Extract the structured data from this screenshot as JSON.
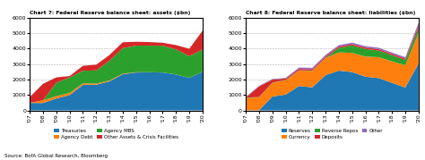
{
  "source": "Source: BofA Global Research, Bloomberg",
  "chart_data": [
    {
      "type": "area",
      "stacked": true,
      "title": "Chart 7: Federal Reserve balance sheet: assets ($bn)",
      "categories": [
        "'07",
        "'08",
        "'09",
        "'10",
        "'11",
        "'12",
        "'13",
        "'14",
        "'15",
        "'16",
        "'17",
        "'18",
        "'19",
        "'20"
      ],
      "series": [
        {
          "name": "Treasuries",
          "values": [
            480,
            480,
            770,
            990,
            1650,
            1660,
            1880,
            2340,
            2450,
            2460,
            2450,
            2320,
            2100,
            2500
          ]
        },
        {
          "name": "Agency Debt",
          "values": [
            10,
            170,
            155,
            140,
            95,
            75,
            55,
            38,
            18,
            8,
            4,
            4,
            4,
            4
          ]
        },
        {
          "name": "Agency MBS",
          "values": [
            0,
            0,
            870,
            1000,
            820,
            850,
            1280,
            1650,
            1720,
            1720,
            1730,
            1620,
            1400,
            1430
          ]
        },
        {
          "name": "Other Assets & Crisis Facilities",
          "values": [
            370,
            1070,
            340,
            90,
            320,
            370,
            370,
            380,
            250,
            230,
            190,
            280,
            480,
            1220
          ]
        }
      ],
      "ylim": [
        0,
        6000
      ],
      "yticks": [
        0,
        1000,
        2000,
        3000,
        4000,
        5000,
        6000
      ],
      "grid": true,
      "legend": "upper center"
    },
    {
      "type": "area",
      "stacked": true,
      "title": "Chart 8: Federal Reserve balance sheet: liabilities ($bn)",
      "categories": [
        "'07",
        "'08",
        "'09",
        "'10",
        "'11",
        "'12",
        "'13",
        "'14",
        "'15",
        "'16",
        "'17",
        "'18",
        "'19",
        "'20"
      ],
      "series": [
        {
          "name": "Reserves",
          "values": [
            10,
            10,
            900,
            1020,
            1580,
            1490,
            2280,
            2570,
            2480,
            2180,
            2090,
            1780,
            1480,
            3050
          ]
        },
        {
          "name": "Currency",
          "values": [
            790,
            840,
            880,
            930,
            990,
            1060,
            1110,
            1180,
            1240,
            1300,
            1350,
            1390,
            1440,
            1950
          ]
        },
        {
          "name": "Reverse Repos",
          "values": [
            20,
            20,
            20,
            20,
            20,
            20,
            20,
            290,
            480,
            490,
            430,
            390,
            340,
            290
          ]
        },
        {
          "name": "Deposits",
          "values": [
            10,
            680,
            190,
            90,
            90,
            90,
            90,
            90,
            90,
            90,
            90,
            90,
            90,
            190
          ]
        },
        {
          "name": "Other",
          "values": [
            40,
            40,
            40,
            40,
            90,
            90,
            90,
            90,
            90,
            90,
            90,
            90,
            90,
            190
          ]
        }
      ],
      "ylim": [
        0,
        6000
      ],
      "yticks": [
        0,
        1000,
        2000,
        3000,
        4000,
        5000,
        6000
      ],
      "grid": true,
      "legend": "upper center"
    }
  ]
}
